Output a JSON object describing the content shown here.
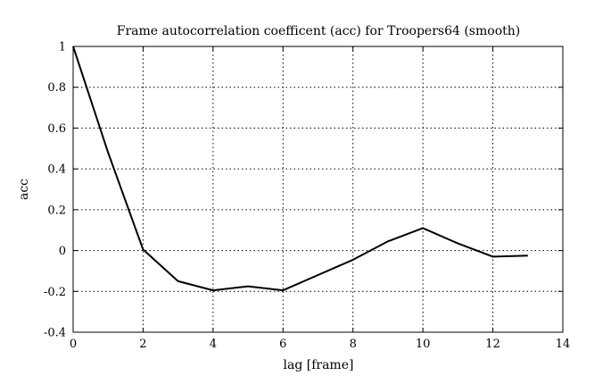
{
  "chart_data": {
    "type": "line",
    "title": "Frame autocorrelation coefficent (acc) for Troopers64 (smooth)",
    "xlabel": "lag [frame]",
    "ylabel": "acc",
    "xlim": [
      0,
      14
    ],
    "ylim": [
      -0.4,
      1
    ],
    "xticks": [
      0,
      2,
      4,
      6,
      8,
      10,
      12,
      14
    ],
    "yticks": [
      -0.4,
      -0.2,
      0,
      0.2,
      0.4,
      0.6,
      0.8,
      1
    ],
    "xtick_labels": [
      "0",
      "2",
      "4",
      "6",
      "8",
      "10",
      "12",
      "14"
    ],
    "ytick_labels": [
      "-0.4",
      "-0.2",
      "0",
      "0.2",
      "0.4",
      "0.6",
      "0.8",
      "1"
    ],
    "grid": true,
    "series": [
      {
        "x": [
          0,
          1,
          2,
          3,
          4,
          5,
          6,
          7,
          8,
          9,
          10,
          11,
          12,
          13
        ],
        "values": [
          1.0,
          0.48,
          0.005,
          -0.15,
          -0.195,
          -0.175,
          -0.195,
          -0.12,
          -0.045,
          0.045,
          0.11,
          0.035,
          -0.03,
          -0.025
        ],
        "color": "#000000"
      }
    ]
  }
}
